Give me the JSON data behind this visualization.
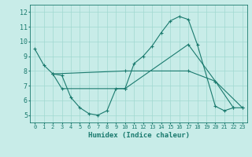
{
  "xlabel": "Humidex (Indice chaleur)",
  "bg_color": "#c8ece8",
  "line_color": "#1a7a6e",
  "grid_color": "#a0d8d0",
  "xlim": [
    -0.5,
    23.5
  ],
  "ylim": [
    4.5,
    12.5
  ],
  "xticks": [
    0,
    1,
    2,
    3,
    4,
    5,
    6,
    7,
    8,
    9,
    10,
    11,
    12,
    13,
    14,
    15,
    16,
    17,
    18,
    19,
    20,
    21,
    22,
    23
  ],
  "yticks": [
    5,
    6,
    7,
    8,
    9,
    10,
    11,
    12
  ],
  "line1_x": [
    0,
    1,
    2,
    3,
    4,
    5,
    6,
    7,
    8,
    9,
    10,
    11,
    12,
    13,
    14,
    15,
    16,
    17,
    18,
    20,
    21,
    22
  ],
  "line1_y": [
    9.5,
    8.4,
    7.8,
    7.7,
    6.2,
    5.5,
    5.1,
    5.0,
    5.3,
    6.8,
    6.8,
    8.5,
    9.0,
    9.7,
    10.6,
    11.4,
    11.7,
    11.5,
    9.8,
    5.6,
    5.3,
    5.5
  ],
  "line2_x": [
    2,
    3,
    10,
    17,
    20,
    22,
    23
  ],
  "line2_y": [
    7.8,
    6.8,
    6.8,
    9.8,
    7.3,
    5.5,
    5.5
  ],
  "line3_x": [
    2,
    10,
    17,
    20,
    23
  ],
  "line3_y": [
    7.8,
    8.0,
    8.0,
    7.3,
    5.5
  ]
}
